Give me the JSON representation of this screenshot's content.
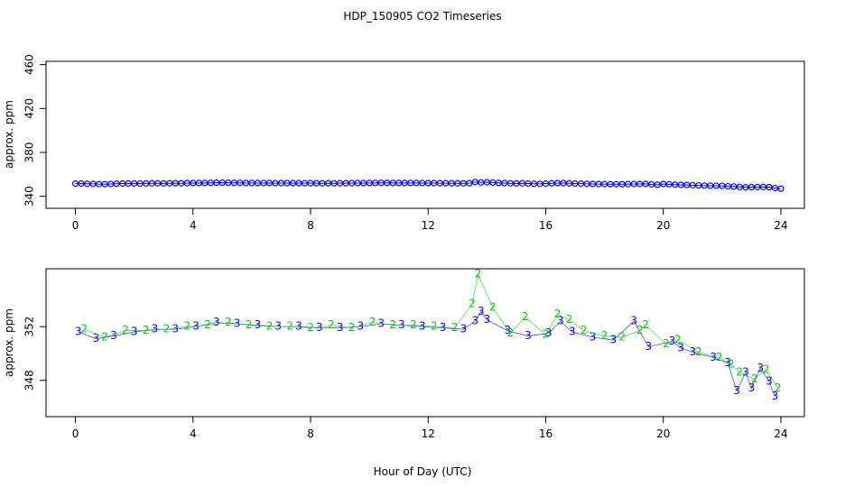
{
  "chart_data": [
    {
      "type": "scatter",
      "title": "HDP_150905  CO2 Timeseries",
      "xlabel": "",
      "ylabel": "approx. ppm",
      "xlim": [
        -1.0,
        24.8
      ],
      "ylim": [
        329,
        463
      ],
      "x_ticks": [
        0,
        4,
        8,
        12,
        16,
        20,
        24
      ],
      "y_ticks": [
        340,
        380,
        420,
        460
      ],
      "grid": false,
      "series": [
        {
          "marker": "circle",
          "color": "#0000ff",
          "x": [
            0.0,
            0.2,
            0.4,
            0.6,
            0.8,
            1.0,
            1.2,
            1.4,
            1.6,
            1.8,
            2.0,
            2.2,
            2.4,
            2.6,
            2.8,
            3.0,
            3.2,
            3.4,
            3.6,
            3.8,
            4.0,
            4.2,
            4.4,
            4.6,
            4.8,
            5.0,
            5.2,
            5.4,
            5.6,
            5.8,
            6.0,
            6.2,
            6.4,
            6.6,
            6.8,
            7.0,
            7.2,
            7.4,
            7.6,
            7.8,
            8.0,
            8.2,
            8.4,
            8.6,
            8.8,
            9.0,
            9.2,
            9.4,
            9.6,
            9.8,
            10.0,
            10.2,
            10.4,
            10.6,
            10.8,
            11.0,
            11.2,
            11.4,
            11.6,
            11.8,
            12.0,
            12.2,
            12.4,
            12.6,
            12.8,
            13.0,
            13.2,
            13.4,
            13.6,
            13.8,
            14.0,
            14.2,
            14.4,
            14.6,
            14.8,
            15.0,
            15.2,
            15.4,
            15.6,
            15.8,
            16.0,
            16.2,
            16.4,
            16.6,
            16.8,
            17.0,
            17.2,
            17.4,
            17.6,
            17.8,
            18.0,
            18.2,
            18.4,
            18.6,
            18.8,
            19.0,
            19.2,
            19.4,
            19.6,
            19.8,
            20.0,
            20.2,
            20.4,
            20.6,
            20.8,
            21.0,
            21.2,
            21.4,
            21.6,
            21.8,
            22.0,
            22.2,
            22.4,
            22.6,
            22.8,
            23.0,
            23.2,
            23.4,
            23.6,
            23.8,
            24.0
          ],
          "y": [
            351.5,
            351.6,
            351.4,
            351.3,
            351.1,
            351.0,
            351.2,
            351.4,
            351.6,
            351.7,
            351.7,
            351.6,
            351.7,
            351.8,
            351.8,
            351.7,
            351.8,
            351.9,
            351.8,
            352.0,
            352.1,
            352.0,
            352.1,
            352.2,
            352.3,
            352.4,
            352.3,
            352.2,
            352.2,
            352.1,
            352.1,
            352.1,
            352.0,
            352.1,
            352.0,
            352.0,
            352.0,
            352.0,
            352.0,
            351.9,
            351.9,
            351.9,
            351.8,
            351.9,
            351.8,
            351.9,
            351.9,
            352.0,
            352.0,
            352.0,
            352.1,
            352.1,
            352.2,
            352.2,
            352.1,
            352.1,
            352.1,
            352.1,
            352.1,
            352.0,
            352.0,
            352.0,
            351.9,
            351.9,
            351.8,
            351.8,
            351.8,
            351.9,
            353.0,
            352.6,
            352.8,
            352.5,
            352.2,
            352.0,
            351.8,
            351.7,
            351.8,
            351.6,
            351.4,
            351.3,
            351.5,
            351.8,
            352.0,
            352.0,
            351.8,
            351.6,
            351.5,
            351.3,
            351.2,
            351.1,
            351.1,
            351.0,
            351.0,
            351.0,
            351.1,
            351.2,
            351.2,
            351.3,
            350.8,
            350.5,
            351.2,
            350.9,
            350.6,
            350.4,
            350.3,
            350.1,
            349.9,
            349.7,
            349.6,
            349.6,
            349.5,
            349.1,
            348.9,
            348.5,
            348.2,
            348.3,
            348.4,
            348.5,
            348.3,
            347.5,
            346.9
          ]
        }
      ]
    },
    {
      "type": "scatter",
      "title": "",
      "xlabel": "Hour of Day (UTC)",
      "ylabel": "approx. ppm",
      "xlim": [
        -1.0,
        24.8
      ],
      "ylim": [
        345.3,
        356.3
      ],
      "x_ticks": [
        0,
        4,
        8,
        12,
        16,
        20,
        24
      ],
      "y_ticks": [
        348,
        352
      ],
      "grid": false,
      "series": [
        {
          "name": "3",
          "marker": "3",
          "color": "#0000ff",
          "x": [
            0.1,
            0.7,
            1.3,
            2.0,
            2.7,
            3.4,
            4.1,
            4.8,
            5.5,
            6.2,
            6.9,
            7.6,
            8.3,
            9.0,
            9.7,
            10.4,
            11.1,
            11.8,
            12.5,
            13.2,
            13.6,
            13.8,
            14.0,
            14.7,
            15.4,
            16.1,
            16.5,
            16.9,
            17.6,
            18.3,
            19.0,
            19.5,
            20.3,
            20.6,
            21.0,
            21.7,
            22.2,
            22.5,
            22.8,
            23.0,
            23.3,
            23.6,
            23.8
          ],
          "y": [
            351.6,
            351.1,
            351.3,
            351.6,
            351.8,
            351.8,
            352.0,
            352.3,
            352.2,
            352.1,
            352.0,
            352.0,
            351.9,
            351.9,
            352.0,
            352.2,
            352.1,
            352.0,
            351.9,
            351.8,
            352.4,
            353.1,
            352.5,
            351.7,
            351.3,
            351.5,
            352.4,
            351.6,
            351.2,
            351.0,
            352.4,
            350.5,
            350.9,
            350.4,
            350.1,
            349.7,
            349.3,
            347.2,
            348.6,
            347.4,
            348.9,
            347.9,
            346.8
          ]
        },
        {
          "name": "2",
          "marker": "2",
          "color": "#00cc00",
          "x": [
            0.3,
            1.0,
            1.7,
            2.4,
            3.1,
            3.8,
            4.5,
            5.2,
            5.9,
            6.6,
            7.3,
            8.0,
            8.7,
            9.4,
            10.1,
            10.8,
            11.5,
            12.2,
            12.9,
            13.5,
            13.7,
            14.2,
            14.8,
            15.3,
            16.0,
            16.4,
            16.8,
            17.3,
            18.0,
            18.6,
            19.2,
            19.4,
            20.1,
            20.5,
            21.2,
            21.9,
            22.3,
            22.6,
            23.1,
            23.5,
            23.9
          ],
          "y": [
            351.8,
            351.2,
            351.7,
            351.7,
            351.8,
            352.0,
            352.1,
            352.3,
            352.1,
            352.0,
            352.0,
            351.9,
            352.1,
            351.9,
            352.3,
            352.1,
            352.1,
            352.0,
            351.9,
            353.7,
            355.9,
            353.4,
            351.5,
            352.7,
            351.4,
            352.9,
            352.5,
            351.7,
            351.3,
            351.2,
            351.7,
            352.1,
            350.7,
            351.0,
            350.1,
            349.7,
            349.2,
            348.6,
            348.1,
            348.8,
            347.4
          ]
        }
      ]
    }
  ]
}
